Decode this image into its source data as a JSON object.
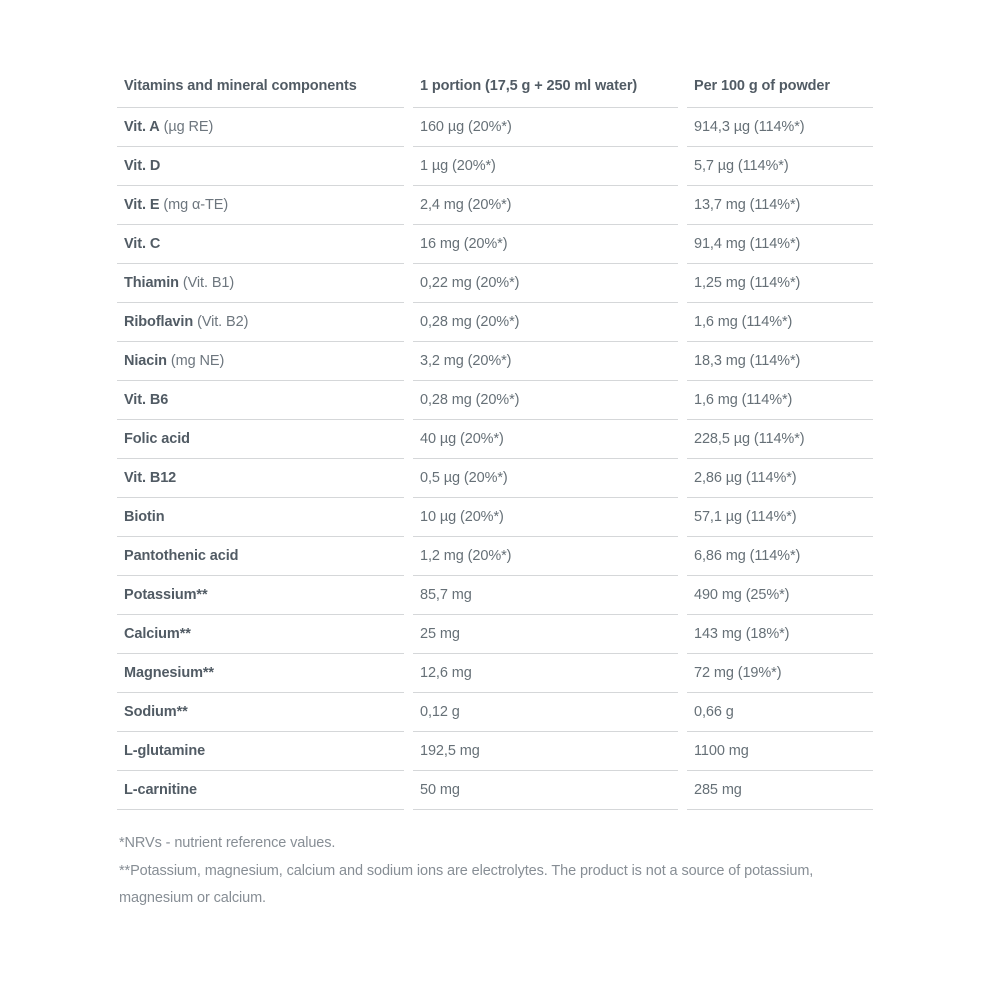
{
  "table": {
    "columns": [
      "Vitamins and mineral components",
      "1 portion (17,5 g + 250 ml water)",
      "Per 100 g of powder"
    ],
    "rows": [
      {
        "name": "Vit. A",
        "suffix": "(µg RE)",
        "portion": "160 µg (20%*)",
        "per_100g": "914,3 µg (114%*)"
      },
      {
        "name": "Vit. D",
        "suffix": "",
        "portion": "1 µg (20%*)",
        "per_100g": "5,7 µg (114%*)"
      },
      {
        "name": "Vit. E",
        "suffix": "(mg α-TE)",
        "portion": "2,4 mg (20%*)",
        "per_100g": "13,7 mg (114%*)"
      },
      {
        "name": "Vit. C",
        "suffix": "",
        "portion": "16 mg (20%*)",
        "per_100g": "91,4 mg (114%*)"
      },
      {
        "name": "Thiamin",
        "suffix": "(Vit. B1)",
        "portion": "0,22 mg (20%*)",
        "per_100g": "1,25 mg (114%*)"
      },
      {
        "name": "Riboflavin",
        "suffix": "(Vit. B2)",
        "portion": "0,28 mg (20%*)",
        "per_100g": "1,6 mg (114%*)"
      },
      {
        "name": "Niacin",
        "suffix": "(mg NE)",
        "portion": "3,2 mg (20%*)",
        "per_100g": "18,3 mg (114%*)"
      },
      {
        "name": "Vit. B6",
        "suffix": "",
        "portion": "0,28 mg (20%*)",
        "per_100g": "1,6 mg (114%*)"
      },
      {
        "name": "Folic acid",
        "suffix": "",
        "portion": "40 µg (20%*)",
        "per_100g": "228,5 µg (114%*)"
      },
      {
        "name": "Vit. B12",
        "suffix": "",
        "portion": "0,5 µg (20%*)",
        "per_100g": "2,86 µg (114%*)"
      },
      {
        "name": "Biotin",
        "suffix": "",
        "portion": "10 µg (20%*)",
        "per_100g": "57,1 µg (114%*)"
      },
      {
        "name": "Pantothenic acid",
        "suffix": "",
        "portion": "1,2 mg (20%*)",
        "per_100g": "6,86 mg (114%*)"
      },
      {
        "name": "Potassium**",
        "suffix": "",
        "portion": "85,7 mg",
        "per_100g": "490 mg (25%*)"
      },
      {
        "name": "Calcium**",
        "suffix": "",
        "portion": "25 mg",
        "per_100g": "143 mg (18%*)"
      },
      {
        "name": "Magnesium**",
        "suffix": "",
        "portion": "12,6 mg",
        "per_100g": "72 mg (19%*)"
      },
      {
        "name": "Sodium**",
        "suffix": "",
        "portion": "0,12 g",
        "per_100g": "0,66 g"
      },
      {
        "name": "L-glutamine",
        "suffix": "",
        "portion": "192,5 mg",
        "per_100g": "1100 mg"
      },
      {
        "name": "L-carnitine",
        "suffix": "",
        "portion": "50 mg",
        "per_100g": "285 mg"
      }
    ]
  },
  "footnotes": [
    "*NRVs - nutrient reference values.",
    "**Potassium, magnesium, calcium and sodium ions are electrolytes. The product is not a source of potassium, magnesium or calcium."
  ],
  "colors": {
    "heading_text": "#515b64",
    "body_text": "#667077",
    "footnote_text": "#878e95",
    "divider": "#d5d7d9",
    "background": "#ffffff"
  }
}
